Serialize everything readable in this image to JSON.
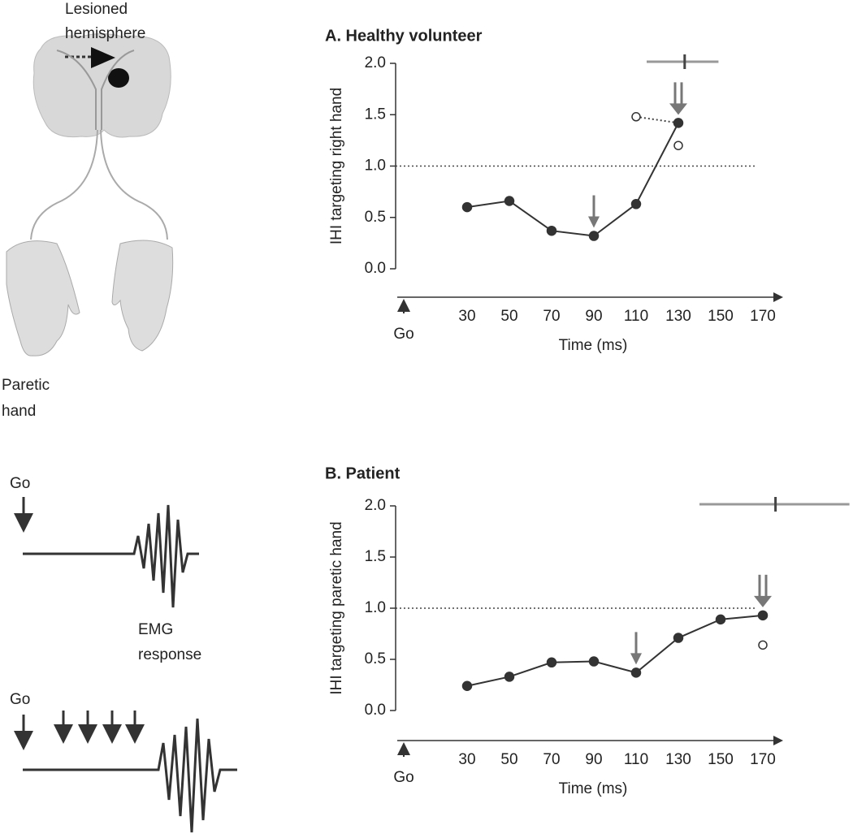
{
  "illustration": {
    "lesion_label": [
      "Lesioned",
      "hemisphere"
    ],
    "hand_label": [
      "Paretic",
      "hand"
    ],
    "go_top": "Go",
    "go_bottom": "Go",
    "emg_label": [
      "EMG",
      "response"
    ]
  },
  "chart_data": [
    {
      "type": "line",
      "title": "A. Healthy volunteer",
      "ylabel": "IHI targeting right hand",
      "xlabel": "Time (ms)",
      "go_label": "Go",
      "x": [
        30,
        50,
        70,
        90,
        110,
        130,
        150,
        170
      ],
      "series": [
        {
          "color": "#333333",
          "marker": "filled",
          "values": [
            0.6,
            0.66,
            0.37,
            0.32,
            0.63,
            1.42,
            null,
            null
          ]
        },
        {
          "color": "#333333",
          "marker": "open",
          "values": [
            null,
            null,
            null,
            null,
            1.48,
            1.2,
            null,
            null
          ]
        }
      ],
      "xlim": [
        0,
        180
      ],
      "xticks": [
        30,
        50,
        70,
        90,
        110,
        130,
        150,
        170
      ],
      "ylim": [
        0,
        2
      ],
      "yticks": [
        {
          "value": 0,
          "label": "0.0"
        },
        {
          "value": 0.5,
          "label": "0.5"
        },
        {
          "value": 1,
          "label": "1.0"
        },
        {
          "value": 1.5,
          "label": "1.5"
        },
        {
          "value": 2,
          "label": "2.0"
        }
      ],
      "reference_line": 1,
      "reaction_time": {
        "mean": 133,
        "range": [
          115,
          149
        ]
      },
      "arrows": [
        {
          "x": 90,
          "count": 1
        },
        {
          "x": 130,
          "count": 2
        }
      ],
      "arrow_color": "#777777",
      "bar_color": "#999999"
    },
    {
      "type": "line",
      "title": "B. Patient",
      "ylabel": "IHI targeting paretic hand",
      "xlabel": "Time (ms)",
      "go_label": "Go",
      "x": [
        30,
        50,
        70,
        90,
        110,
        130,
        150,
        170
      ],
      "series": [
        {
          "color": "#333333",
          "marker": "filled",
          "values": [
            0.24,
            0.33,
            0.47,
            0.48,
            0.37,
            0.71,
            0.89,
            0.93
          ]
        },
        {
          "color": "#333333",
          "marker": "open",
          "values": [
            null,
            null,
            null,
            null,
            null,
            null,
            null,
            0.64
          ]
        }
      ],
      "xlim": [
        0,
        180
      ],
      "xticks": [
        30,
        50,
        70,
        90,
        110,
        130,
        150,
        170
      ],
      "ylim": [
        0,
        2
      ],
      "yticks": [
        {
          "value": 0,
          "label": "0.0"
        },
        {
          "value": 0.5,
          "label": "0.5"
        },
        {
          "value": 1,
          "label": "1.0"
        },
        {
          "value": 1.5,
          "label": "1.5"
        },
        {
          "value": 2,
          "label": "2.0"
        }
      ],
      "reference_line": 1,
      "reaction_time": {
        "mean": 176,
        "range": [
          140,
          211
        ]
      },
      "arrows": [
        {
          "x": 110,
          "count": 1
        },
        {
          "x": 170,
          "count": 2
        }
      ],
      "arrow_color": "#777777",
      "bar_color": "#999999"
    }
  ]
}
